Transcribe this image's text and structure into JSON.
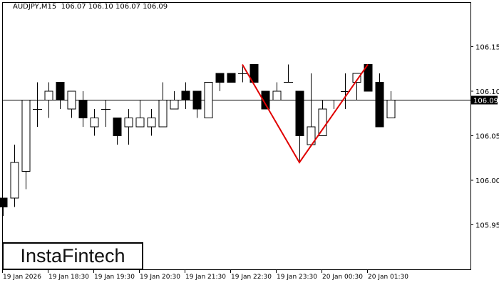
{
  "header": {
    "symbol": "AUDJPY,M15",
    "ohlc": "106.07 106.10 106.07 106.09"
  },
  "logo": "InstaFintech",
  "colors": {
    "bull_fill": "#ffffff",
    "bear_fill": "#000000",
    "pattern_line": "#e00000",
    "price_line": "#000000"
  },
  "chart_data": {
    "type": "candlestick",
    "ylim": [
      105.9,
      106.2
    ],
    "y_ticks": [
      "106.15",
      "106.10",
      "106.05",
      "106.00",
      "105.95"
    ],
    "x_tick_labels": [
      "19 Jan 2026",
      "19 Jan 18:30",
      "19 Jan 19:30",
      "19 Jan 20:30",
      "19 Jan 21:30",
      "19 Jan 22:30",
      "19 Jan 23:30",
      "20 Jan 00:30",
      "20 Jan 01:30"
    ],
    "current_price": "106.09",
    "candles": [
      [
        105.98,
        105.98,
        105.96,
        105.97
      ],
      [
        105.98,
        106.04,
        105.97,
        106.02
      ],
      [
        106.01,
        106.09,
        105.99,
        106.09
      ],
      [
        106.08,
        106.11,
        106.06,
        106.08
      ],
      [
        106.09,
        106.11,
        106.07,
        106.1
      ],
      [
        106.11,
        106.11,
        106.08,
        106.09
      ],
      [
        106.08,
        106.1,
        106.07,
        106.1
      ],
      [
        106.09,
        106.1,
        106.06,
        106.07
      ],
      [
        106.06,
        106.08,
        106.05,
        106.07
      ],
      [
        106.08,
        106.09,
        106.06,
        106.08
      ],
      [
        106.07,
        106.07,
        106.04,
        106.05
      ],
      [
        106.06,
        106.08,
        106.04,
        106.07
      ],
      [
        106.06,
        106.09,
        106.06,
        106.07
      ],
      [
        106.06,
        106.08,
        106.05,
        106.07
      ],
      [
        106.06,
        106.11,
        106.06,
        106.09
      ],
      [
        106.08,
        106.1,
        106.08,
        106.09
      ],
      [
        106.1,
        106.11,
        106.08,
        106.09
      ],
      [
        106.1,
        106.1,
        106.07,
        106.08
      ],
      [
        106.07,
        106.11,
        106.07,
        106.11
      ],
      [
        106.12,
        106.12,
        106.1,
        106.11
      ],
      [
        106.12,
        106.12,
        106.11,
        106.11
      ],
      [
        106.12,
        106.13,
        106.11,
        106.12
      ],
      [
        106.13,
        106.13,
        106.11,
        106.11
      ],
      [
        106.1,
        106.1,
        106.08,
        106.08
      ],
      [
        106.09,
        106.11,
        106.09,
        106.1
      ],
      [
        106.11,
        106.13,
        106.11,
        106.11
      ],
      [
        106.1,
        106.1,
        106.02,
        106.05
      ],
      [
        106.04,
        106.12,
        106.04,
        106.06
      ],
      [
        106.05,
        106.09,
        106.05,
        106.08
      ],
      [
        106.09,
        106.09,
        106.08,
        106.09
      ],
      [
        106.1,
        106.12,
        106.08,
        106.1
      ],
      [
        106.11,
        106.12,
        106.09,
        106.12
      ],
      [
        106.13,
        106.13,
        106.1,
        106.1
      ],
      [
        106.11,
        106.12,
        106.06,
        106.06
      ],
      [
        106.07,
        106.1,
        106.07,
        106.09
      ]
    ],
    "pattern": {
      "type": "double top",
      "points": [
        [
          21,
          106.13
        ],
        [
          26,
          106.02
        ],
        [
          32,
          106.13
        ]
      ]
    }
  }
}
